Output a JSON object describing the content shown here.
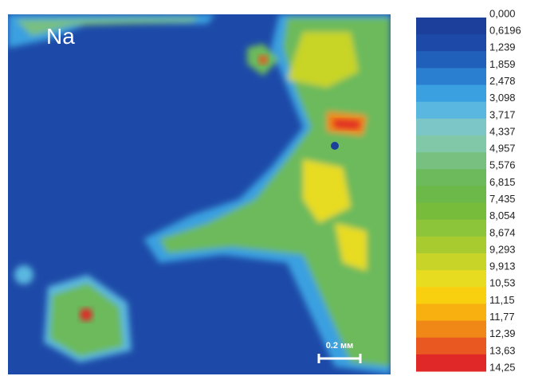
{
  "map": {
    "element": "Na",
    "scale_bar": "0.2 мм"
  },
  "colorbar": {
    "labels": [
      "0,000",
      "0,6196",
      "1,239",
      "1,859",
      "2,478",
      "3,098",
      "3,717",
      "4,337",
      "4,957",
      "5,576",
      "6,815",
      "7,435",
      "8,054",
      "8,674",
      "9,293",
      "9,913",
      "10,53",
      "11,15",
      "11,77",
      "12,39",
      "13,63",
      "14,25"
    ],
    "colors": [
      "#1b3f9a",
      "#1d4aa8",
      "#2060bb",
      "#2a7fd0",
      "#3aa0e0",
      "#5ab8e0",
      "#7cc6c8",
      "#80c8a8",
      "#78c080",
      "#6cba5c",
      "#6cb848",
      "#78bc3c",
      "#8cc43a",
      "#a8cc30",
      "#c8d428",
      "#e8dc20",
      "#f8d010",
      "#f8b010",
      "#f08818",
      "#e85820",
      "#e02828"
    ]
  }
}
